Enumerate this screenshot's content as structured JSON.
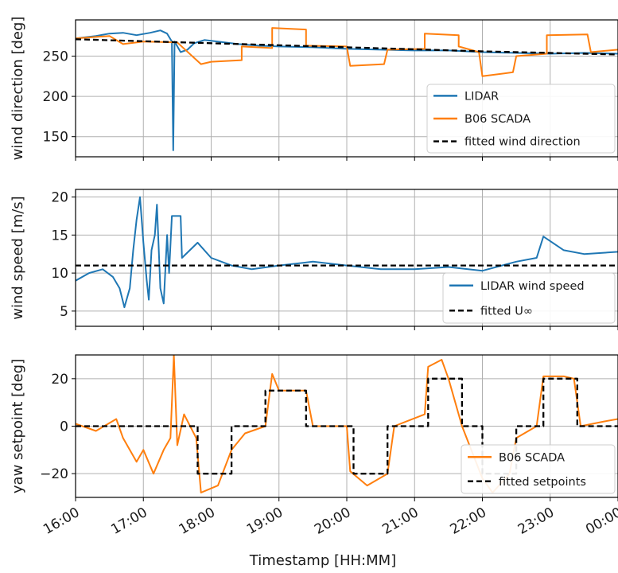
{
  "chart_data": [
    {
      "type": "line",
      "ylabel": "wind direction [deg]",
      "ylim": [
        125,
        295
      ],
      "yticks": [
        "150",
        "200",
        "250"
      ],
      "grid": true,
      "legend_placement": "lower-right",
      "series": [
        {
          "name": "LIDAR",
          "color": "#1f77b4",
          "style": "solid",
          "points": [
            [
              16.0,
              272
            ],
            [
              16.3,
              275
            ],
            [
              16.5,
              278
            ],
            [
              16.7,
              279
            ],
            [
              16.9,
              276
            ],
            [
              17.1,
              279
            ],
            [
              17.25,
              282
            ],
            [
              17.35,
              278
            ],
            [
              17.42,
              268
            ],
            [
              17.44,
              133
            ],
            [
              17.46,
              268
            ],
            [
              17.55,
              255
            ],
            [
              17.65,
              258
            ],
            [
              17.75,
              266
            ],
            [
              17.9,
              270
            ],
            [
              18.1,
              268
            ],
            [
              18.4,
              265
            ],
            [
              18.7,
              263
            ],
            [
              19.0,
              262
            ],
            [
              19.5,
              261
            ],
            [
              20.0,
              259
            ],
            [
              20.5,
              258
            ],
            [
              21.0,
              257
            ],
            [
              21.5,
              257
            ],
            [
              22.0,
              255
            ],
            [
              22.5,
              254
            ],
            [
              23.0,
              253
            ],
            [
              23.5,
              254
            ],
            [
              24.0,
              253
            ]
          ]
        },
        {
          "name": "B06 SCADA",
          "color": "#ff7f0e",
          "style": "solid",
          "points": [
            [
              16.0,
              272
            ],
            [
              16.5,
              275
            ],
            [
              16.7,
              265
            ],
            [
              17.0,
              268
            ],
            [
              17.5,
              267
            ],
            [
              17.85,
              240
            ],
            [
              18.0,
              243
            ],
            [
              18.45,
              245
            ],
            [
              18.45,
              262
            ],
            [
              18.9,
              260
            ],
            [
              18.9,
              285
            ],
            [
              19.4,
              283
            ],
            [
              19.4,
              263
            ],
            [
              20.0,
              262
            ],
            [
              20.05,
              238
            ],
            [
              20.55,
              240
            ],
            [
              20.6,
              258
            ],
            [
              21.15,
              259
            ],
            [
              21.15,
              278
            ],
            [
              21.65,
              276
            ],
            [
              21.65,
              262
            ],
            [
              21.95,
              255
            ],
            [
              22.0,
              225
            ],
            [
              22.45,
              230
            ],
            [
              22.5,
              250
            ],
            [
              22.95,
              253
            ],
            [
              22.95,
              276
            ],
            [
              23.55,
              277
            ],
            [
              23.6,
              255
            ],
            [
              24.0,
              258
            ]
          ]
        },
        {
          "name": "fitted wind direction",
          "color": "#000000",
          "style": "dashed",
          "points": [
            [
              16.0,
              271
            ],
            [
              18.0,
              266
            ],
            [
              20.0,
              261
            ],
            [
              22.0,
              256
            ],
            [
              24.0,
              252
            ]
          ]
        }
      ]
    },
    {
      "type": "line",
      "ylabel": "wind speed [m/s]",
      "ylim": [
        3,
        21
      ],
      "yticks": [
        "5",
        "10",
        "15",
        "20"
      ],
      "grid": true,
      "legend_placement": "lower-right",
      "series": [
        {
          "name": "LIDAR wind speed",
          "color": "#1f77b4",
          "style": "solid",
          "points": [
            [
              16.0,
              9
            ],
            [
              16.2,
              10
            ],
            [
              16.4,
              10.5
            ],
            [
              16.55,
              9.5
            ],
            [
              16.65,
              8
            ],
            [
              16.72,
              5.5
            ],
            [
              16.8,
              8
            ],
            [
              16.85,
              13
            ],
            [
              16.9,
              17
            ],
            [
              16.95,
              20
            ],
            [
              17.0,
              14
            ],
            [
              17.05,
              9
            ],
            [
              17.08,
              6.5
            ],
            [
              17.12,
              13
            ],
            [
              17.17,
              15
            ],
            [
              17.2,
              19
            ],
            [
              17.25,
              8
            ],
            [
              17.3,
              6
            ],
            [
              17.35,
              15
            ],
            [
              17.38,
              10
            ],
            [
              17.42,
              17.5
            ],
            [
              17.55,
              17.5
            ],
            [
              17.57,
              12
            ],
            [
              17.8,
              14
            ],
            [
              18.0,
              12
            ],
            [
              18.3,
              11
            ],
            [
              18.6,
              10.5
            ],
            [
              19.0,
              11
            ],
            [
              19.5,
              11.5
            ],
            [
              20.0,
              11
            ],
            [
              20.5,
              10.5
            ],
            [
              21.0,
              10.5
            ],
            [
              21.5,
              10.8
            ],
            [
              22.0,
              10.3
            ],
            [
              22.5,
              11.5
            ],
            [
              22.8,
              12
            ],
            [
              22.9,
              14.8
            ],
            [
              23.2,
              13
            ],
            [
              23.5,
              12.5
            ],
            [
              24.0,
              12.8
            ]
          ]
        },
        {
          "name": "fitted U∞",
          "color": "#000000",
          "style": "dashed",
          "points": [
            [
              16.0,
              11
            ],
            [
              24.0,
              11
            ]
          ]
        }
      ]
    },
    {
      "type": "line",
      "ylabel": "yaw setpoint [deg]",
      "xlabel": "Timestamp [HH:MM]",
      "xlim": [
        16,
        24
      ],
      "ylim": [
        -30,
        30
      ],
      "yticks": [
        "−20",
        "0",
        "20"
      ],
      "xticks": [
        "16:00",
        "17:00",
        "18:00",
        "19:00",
        "20:00",
        "21:00",
        "22:00",
        "23:00",
        "00:00"
      ],
      "grid": true,
      "legend_placement": "lower-right",
      "series": [
        {
          "name": "B06 SCADA",
          "color": "#ff7f0e",
          "style": "solid",
          "points": [
            [
              16.0,
              1
            ],
            [
              16.3,
              -2
            ],
            [
              16.6,
              3
            ],
            [
              16.7,
              -5
            ],
            [
              16.9,
              -15
            ],
            [
              17.0,
              -10
            ],
            [
              17.15,
              -20
            ],
            [
              17.3,
              -10
            ],
            [
              17.4,
              -5
            ],
            [
              17.45,
              30
            ],
            [
              17.5,
              -8
            ],
            [
              17.6,
              5
            ],
            [
              17.78,
              -5
            ],
            [
              17.85,
              -28
            ],
            [
              18.1,
              -25
            ],
            [
              18.3,
              -10
            ],
            [
              18.5,
              -3
            ],
            [
              18.8,
              0
            ],
            [
              18.9,
              22
            ],
            [
              19.0,
              15
            ],
            [
              19.4,
              15
            ],
            [
              19.5,
              0
            ],
            [
              20.0,
              0
            ],
            [
              20.05,
              -19
            ],
            [
              20.3,
              -25
            ],
            [
              20.6,
              -20
            ],
            [
              20.7,
              0
            ],
            [
              21.15,
              5
            ],
            [
              21.2,
              25
            ],
            [
              21.4,
              28
            ],
            [
              21.5,
              20
            ],
            [
              21.7,
              0
            ],
            [
              22.0,
              -22
            ],
            [
              22.15,
              -28
            ],
            [
              22.4,
              -20
            ],
            [
              22.5,
              -5
            ],
            [
              22.8,
              0
            ],
            [
              22.9,
              21
            ],
            [
              23.2,
              21
            ],
            [
              23.35,
              20
            ],
            [
              23.45,
              0
            ],
            [
              23.8,
              2
            ],
            [
              24.0,
              3
            ]
          ]
        },
        {
          "name": "fitted setpoints",
          "color": "#000000",
          "style": "dashed",
          "points": [
            [
              16.0,
              0
            ],
            [
              17.8,
              0
            ],
            [
              17.8,
              -20
            ],
            [
              18.3,
              -20
            ],
            [
              18.3,
              0
            ],
            [
              18.8,
              0
            ],
            [
              18.8,
              15
            ],
            [
              19.4,
              15
            ],
            [
              19.4,
              0
            ],
            [
              20.1,
              0
            ],
            [
              20.1,
              -20
            ],
            [
              20.6,
              -20
            ],
            [
              20.6,
              0
            ],
            [
              21.2,
              0
            ],
            [
              21.2,
              20
            ],
            [
              21.7,
              20
            ],
            [
              21.7,
              0
            ],
            [
              22.0,
              0
            ],
            [
              22.0,
              -20
            ],
            [
              22.5,
              -20
            ],
            [
              22.5,
              0
            ],
            [
              22.9,
              0
            ],
            [
              22.9,
              20
            ],
            [
              23.4,
              20
            ],
            [
              23.4,
              0
            ],
            [
              24.0,
              0
            ]
          ]
        }
      ]
    }
  ]
}
